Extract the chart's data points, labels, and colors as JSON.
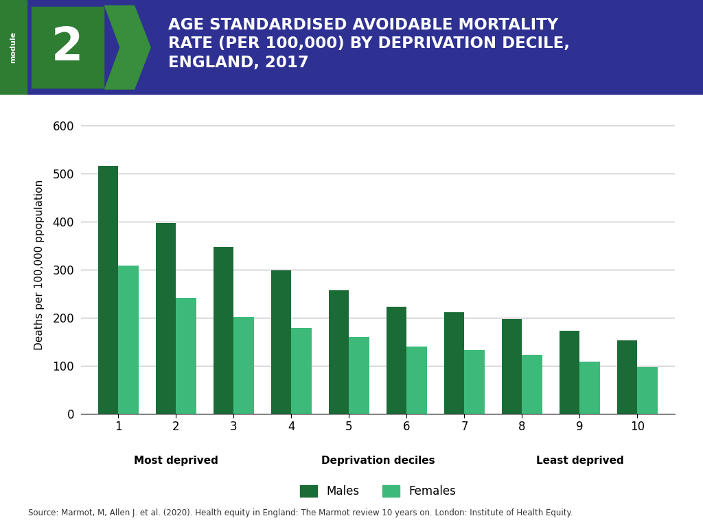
{
  "title_line1": "AGE STANDARDISED AVOIDABLE MORTALITY",
  "title_line2": "RATE (PER 100,000) BY DEPRIVATION DECILE,",
  "title_line3": "ENGLAND, 2017",
  "module_label": "module",
  "module_number": "2",
  "ylabel": "Deaths per 100,000 ppopulation",
  "xlabel": "Deprivation deciles",
  "xlabel_left": "Most deprived",
  "xlabel_right": "Least deprived",
  "deciles": [
    1,
    2,
    3,
    4,
    5,
    6,
    7,
    8,
    9,
    10
  ],
  "males": [
    515,
    397,
    347,
    298,
    257,
    223,
    211,
    197,
    173,
    152
  ],
  "females": [
    309,
    241,
    202,
    179,
    160,
    140,
    132,
    122,
    109,
    97
  ],
  "male_color": "#1a6b35",
  "female_color": "#3dba7a",
  "ylim": [
    0,
    620
  ],
  "yticks": [
    0,
    100,
    200,
    300,
    400,
    500,
    600
  ],
  "header_bg": "#2e3192",
  "header_text_color": "#ffffff",
  "module_bg": "#2e7d32",
  "source_text": "Source: Marmot, M, Allen J. et al. (2020). Health equity in England: The Marmot review 10 years on. London: Institute of Health Equity.",
  "legend_males": "Males",
  "legend_females": "Females",
  "bar_width": 0.35
}
